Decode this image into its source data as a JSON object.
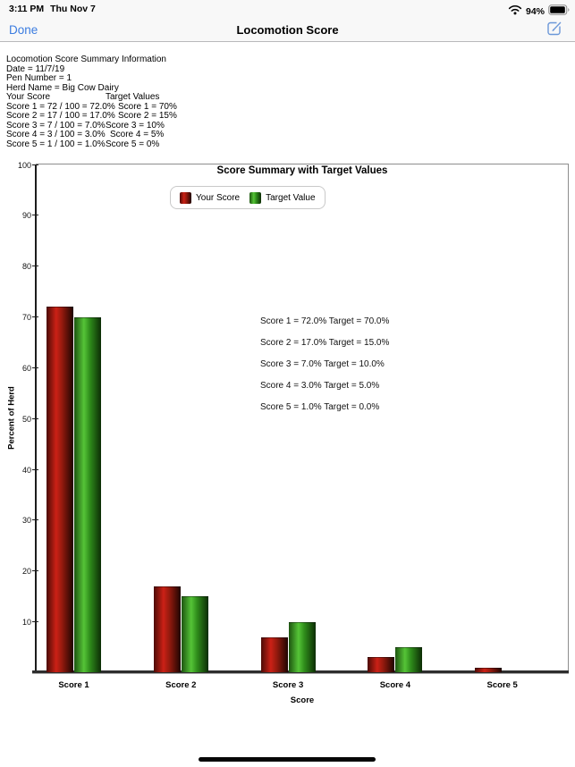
{
  "status_bar": {
    "time": "3:11 PM",
    "date": "Thu Nov 7",
    "battery_percent": "94%",
    "battery_level": 0.94
  },
  "nav_bar": {
    "done_label": "Done",
    "title": "Locomotion Score",
    "accent_color": "#3b7ce0"
  },
  "summary": {
    "lines": [
      "Locomotion Score Summary Information",
      "Date = 11/7/19",
      "Pen Number = 1",
      "Herd Name = Big Cow Dairy"
    ],
    "header": {
      "your": "Your Score",
      "target": "Target Values"
    },
    "rows": [
      {
        "your": "Score 1 = 72 / 100 = 72.0%",
        "target": "Score 1 = 70%"
      },
      {
        "your": "Score 2 = 17 / 100 = 17.0%",
        "target": "Score 2 = 15%"
      },
      {
        "your": "Score 3 = 7 / 100 = 7.0%",
        "target": "Score 3 = 10%"
      },
      {
        "your": "Score 4 = 3 / 100 = 3.0%",
        "target": "Score 4 = 5%"
      },
      {
        "your": "Score 5 = 1 / 100 = 1.0%",
        "target": "Score 5 = 0%"
      }
    ]
  },
  "chart_data": {
    "type": "bar",
    "title": "Score Summary with Target Values",
    "xlabel": "Score",
    "ylabel": "Percent of Herd",
    "categories": [
      "Score 1",
      "Score 2",
      "Score 3",
      "Score 4",
      "Score 5"
    ],
    "series": [
      {
        "name": "Your Score",
        "values": [
          72,
          17,
          7,
          3,
          1
        ],
        "gradient": [
          "#4c0b06",
          "#cb2116",
          "#941a0e",
          "#1e0502"
        ]
      },
      {
        "name": "Target Value",
        "values": [
          70,
          15,
          10,
          5,
          0
        ],
        "gradient": [
          "#1d5410",
          "#55c437",
          "#2f8d1b",
          "#0c2c05"
        ]
      }
    ],
    "ylim": [
      0,
      100
    ],
    "ytick_step": 10,
    "grid": false,
    "legend_position": "inside-top-left",
    "annotations": [
      "Score 1 = 72.0% Target = 70.0%",
      "Score 2 = 17.0% Target = 15.0%",
      "Score 3 = 7.0% Target = 10.0%",
      "Score 4 = 3.0% Target = 5.0%",
      "Score 5 = 1.0% Target = 0.0%"
    ]
  }
}
